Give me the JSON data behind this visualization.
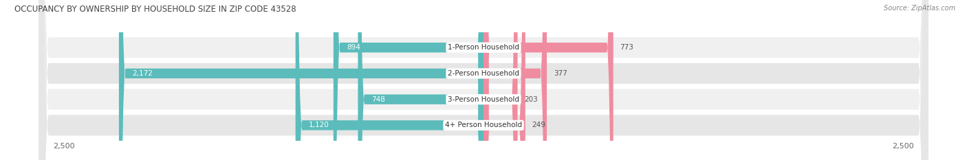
{
  "title": "OCCUPANCY BY OWNERSHIP BY HOUSEHOLD SIZE IN ZIP CODE 43528",
  "source": "Source: ZipAtlas.com",
  "categories": [
    "1-Person Household",
    "2-Person Household",
    "3-Person Household",
    "4+ Person Household"
  ],
  "owner_values": [
    894,
    2172,
    748,
    1120
  ],
  "renter_values": [
    773,
    377,
    203,
    249
  ],
  "owner_color": "#5bbcbb",
  "renter_color": "#f08ca0",
  "row_bg_even": "#f0f0f0",
  "row_bg_odd": "#e6e6e6",
  "axis_max": 2500,
  "label_color": "#555555",
  "title_color": "#444444",
  "figsize": [
    14.06,
    2.33
  ],
  "dpi": 100
}
